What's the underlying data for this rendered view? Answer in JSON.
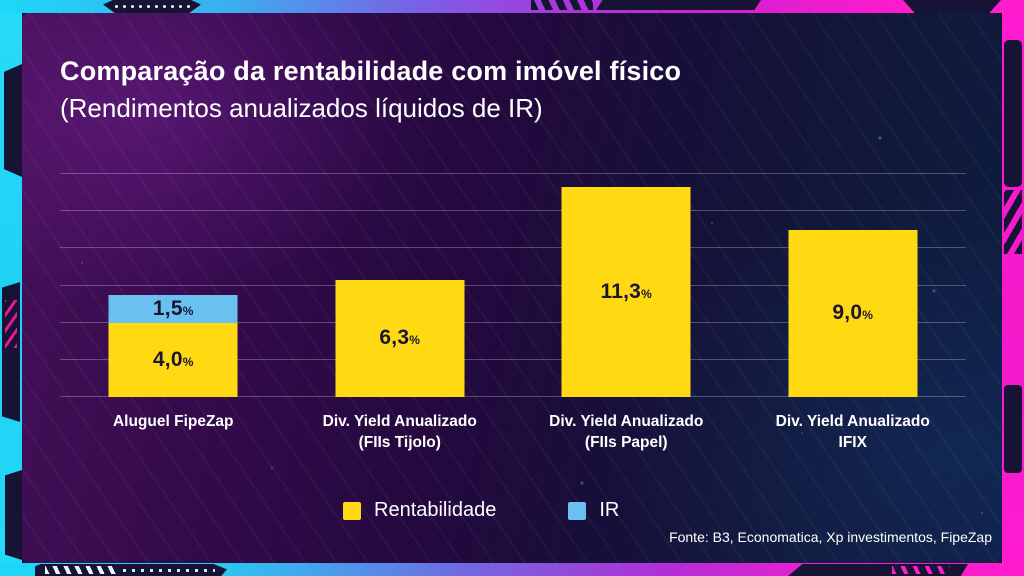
{
  "header": {
    "title": "Comparação da rentabilidade com imóvel físico",
    "subtitle": "(Rendimentos anualizados líquidos de IR)"
  },
  "chart_data": {
    "type": "bar",
    "stacked": true,
    "title": "Comparação da rentabilidade com imóvel físico (Rendimentos anualizados líquidos de IR)",
    "unit": "%",
    "categories": [
      [
        "Aluguel FipeZap"
      ],
      [
        "Div. Yield Anualizado",
        "(FIIs Tijolo)"
      ],
      [
        "Div. Yield Anualizado",
        "(FIIs Papel)"
      ],
      [
        "Div. Yield Anualizado",
        "IFIX"
      ]
    ],
    "series": [
      {
        "name": "Rentabilidade",
        "color": "#ffd912",
        "values": [
          4.0,
          6.3,
          11.3,
          9.0
        ],
        "labels": [
          "4,0",
          "6,3",
          "11,3",
          "9,0"
        ]
      },
      {
        "name": "IR",
        "color": "#6ac1f0",
        "values": [
          1.5,
          0,
          0,
          0
        ],
        "labels": [
          "1,5",
          "",
          "",
          ""
        ]
      }
    ],
    "ylim": [
      0,
      12
    ],
    "gridline_step": 2,
    "grid": true,
    "legend_position": "bottom"
  },
  "legend": {
    "items": [
      {
        "label": "Rentabilidade",
        "color": "#ffd912"
      },
      {
        "label": "IR",
        "color": "#6ac1f0"
      }
    ]
  },
  "footer": {
    "source": "Fonte: B3, Economatica, Xp investimentos, FipeZap"
  },
  "frame": {
    "accent_cyan": "#1ed7f6",
    "accent_magenta": "#ff1bce",
    "ornament_dark": "#171335"
  }
}
